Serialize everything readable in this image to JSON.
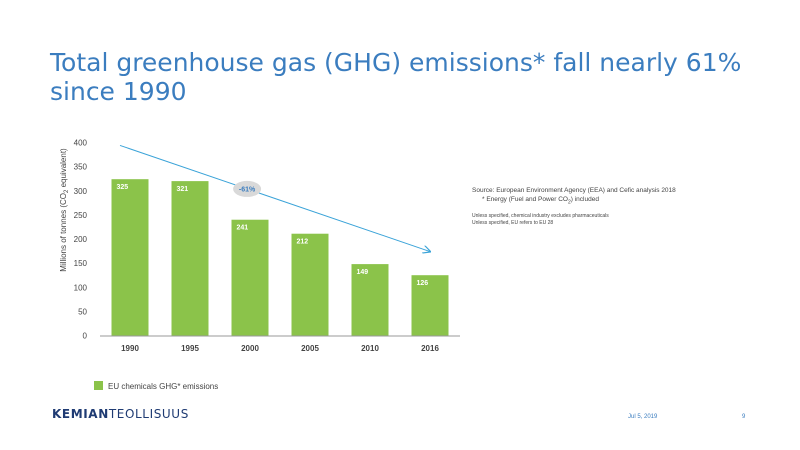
{
  "title": "Total greenhouse gas (GHG) emissions* fall nearly 61% since 1990",
  "notes": {
    "source": "Source: European Environment Agency (EEA) and Cefic analysis 2018",
    "energy_prefix": "* Energy (Fuel and Power CO",
    "energy_sub": "2",
    "energy_suffix": ") included",
    "line1": "Unless specified, chemical industry excludes pharmaceuticals",
    "line2": "Unless specified, EU refers to EU 28"
  },
  "footer": {
    "logo_part1": "KEMIAN",
    "logo_part2": "TEOLLISUUS",
    "date": "Jul 5, 2019",
    "page": "9"
  },
  "colors": {
    "title": "#3b7dbf",
    "bar": "#8bc34a",
    "trend": "#3aa3d8",
    "badge": "#d9d9d9",
    "logo": "#1f3b73"
  },
  "chart_data": {
    "type": "bar",
    "categories": [
      "1990",
      "1995",
      "2000",
      "2005",
      "2010",
      "2016"
    ],
    "values": [
      325,
      321,
      241,
      212,
      149,
      126
    ],
    "ylabel_prefix": "Millions of tonnes (CO",
    "ylabel_sub": "2",
    "ylabel_suffix": " equivalent)",
    "ylim": [
      0,
      400
    ],
    "yticks": [
      0,
      50,
      100,
      150,
      200,
      250,
      300,
      350,
      400
    ],
    "legend": "EU chemicals GHG* emissions",
    "legend_position": "bottom-left",
    "grid": false,
    "annotation": {
      "label": "-61%",
      "type": "trend-arrow",
      "from_category": "1990",
      "to_category": "2016",
      "from_value": 395,
      "to_value": 175
    }
  }
}
